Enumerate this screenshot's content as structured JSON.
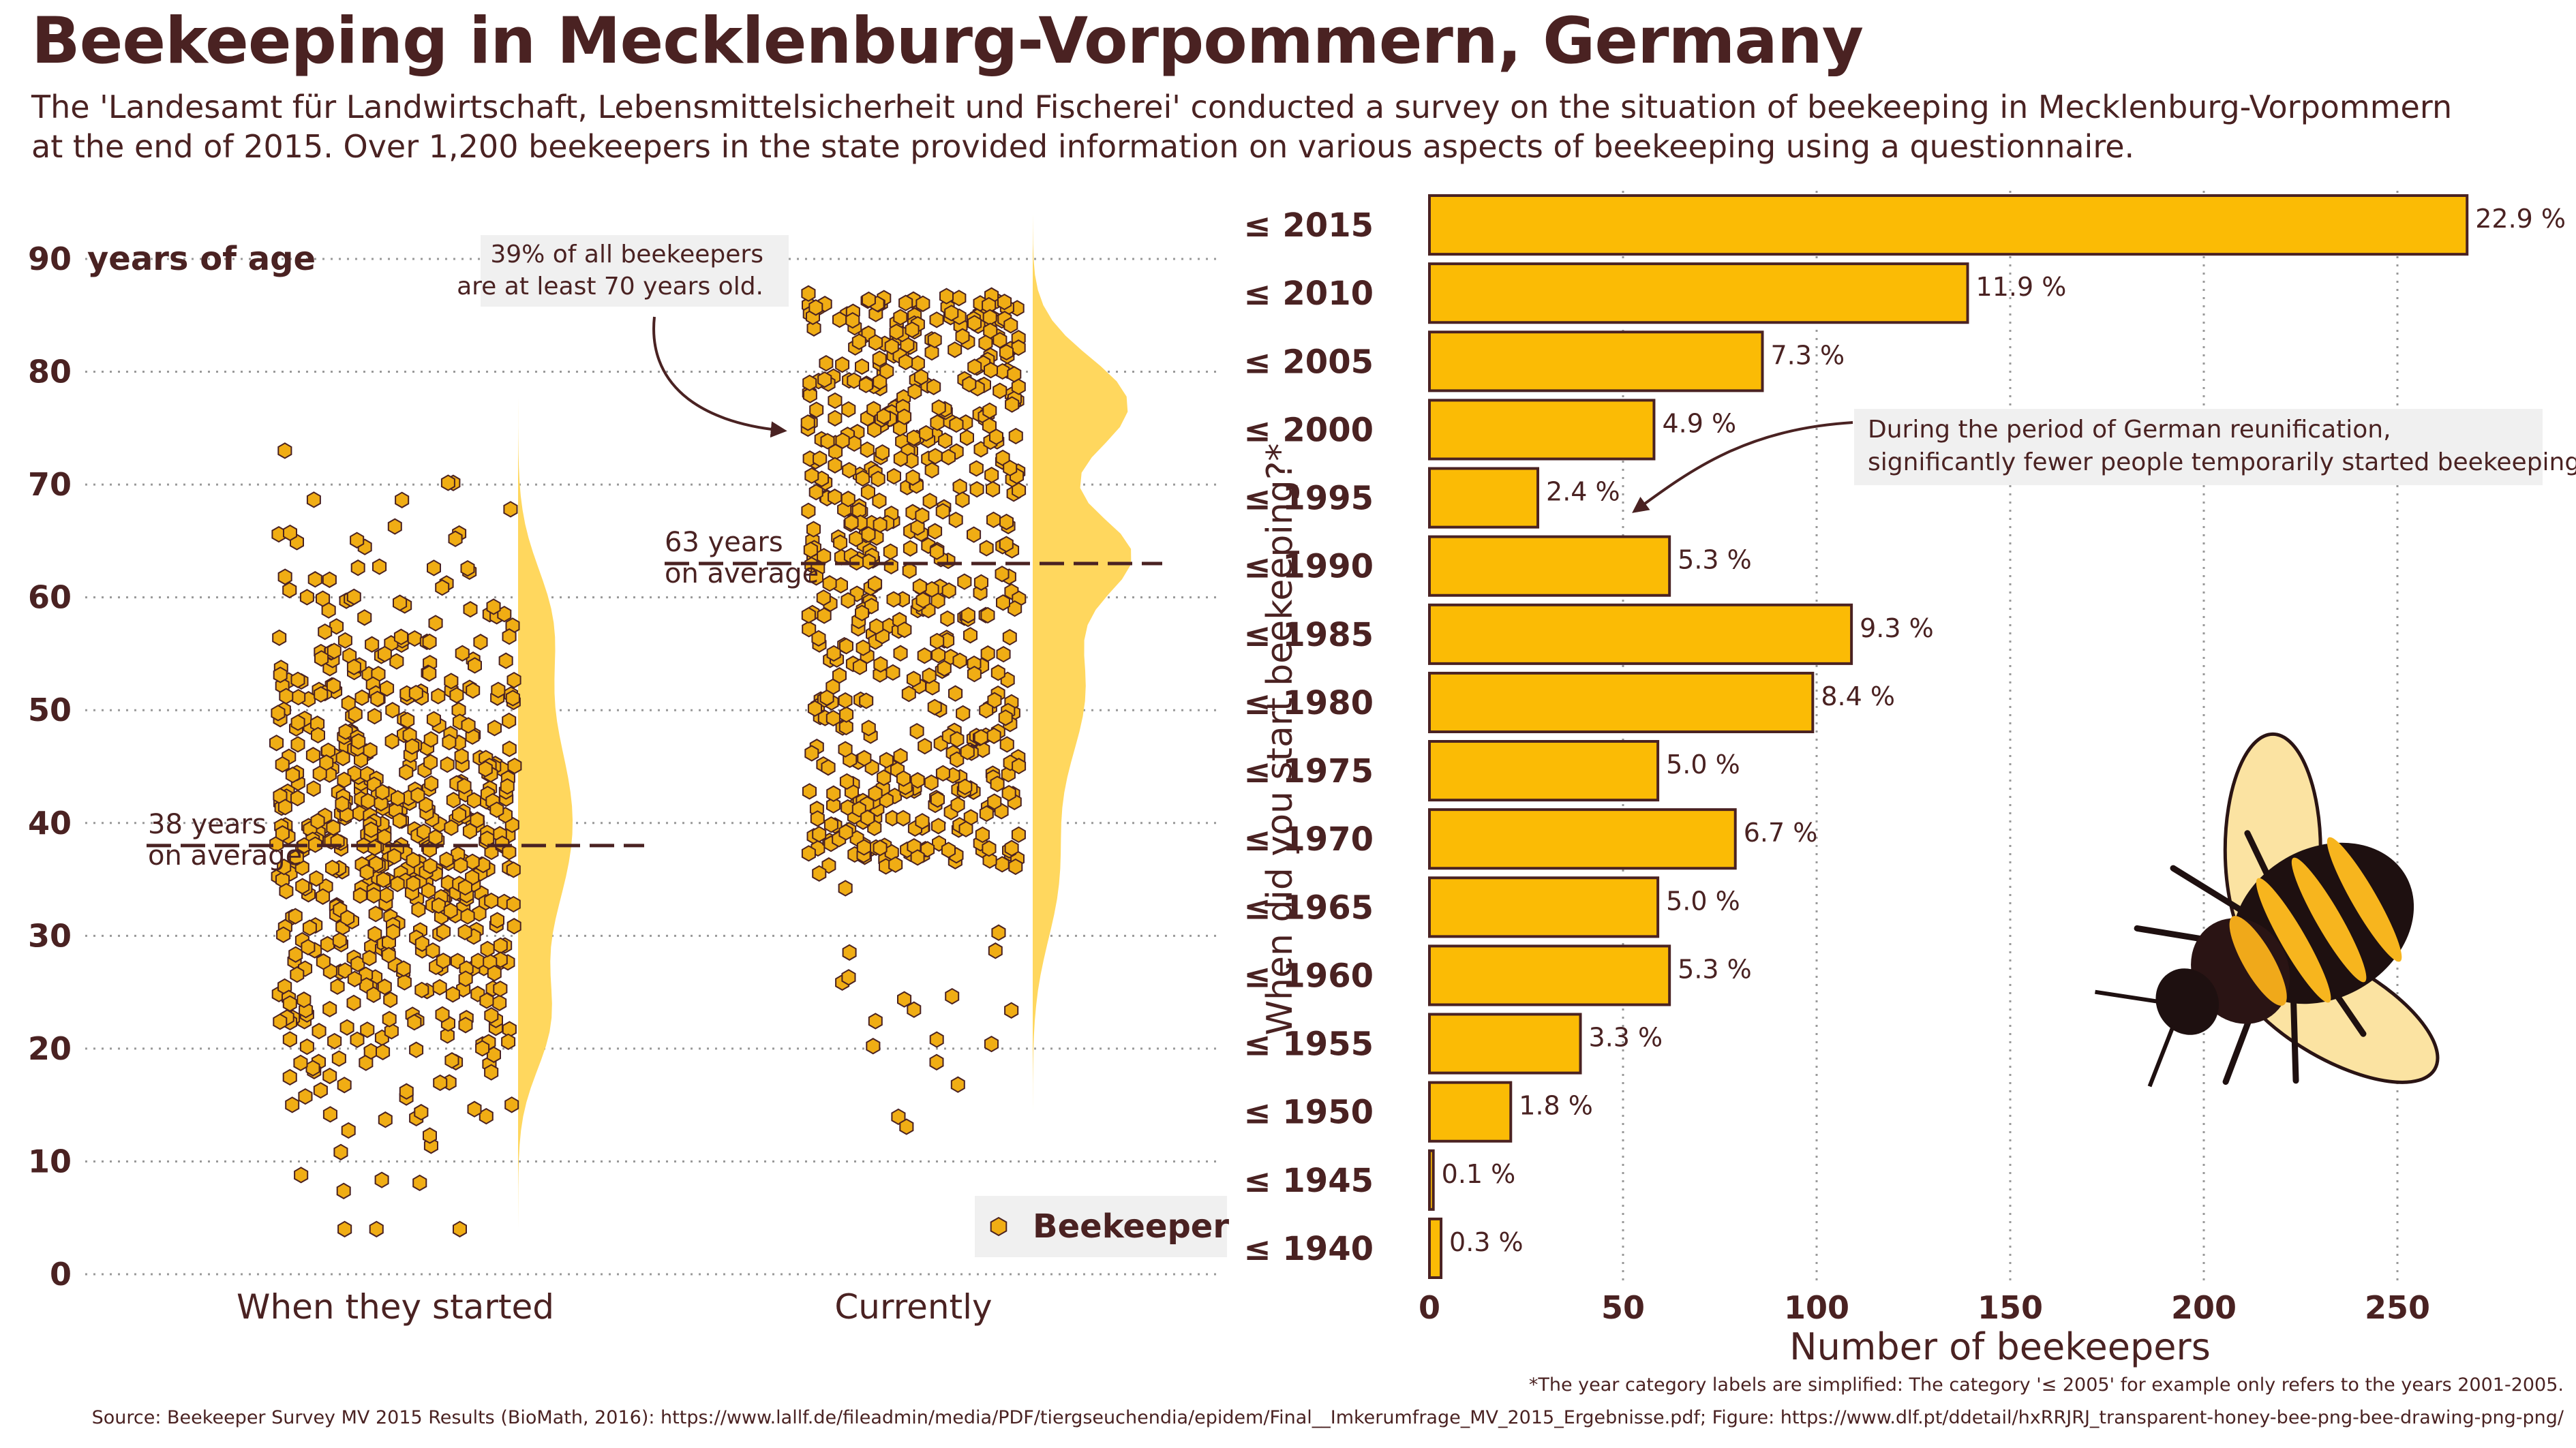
{
  "header": {
    "title": "Beekeeping in Mecklenburg-Vorpommern, Germany",
    "subtitle": "The 'Landesamt für Landwirtschaft, Lebensmittelsicherheit und Fischerei' conducted a survey on the situation of beekeeping in Mecklenburg-Vorpommern at the end of 2015. Over 1,200 beekeepers in the state provided information on various aspects of beekeeping using a questionnaire."
  },
  "footer": {
    "footnote": "*The year category labels are simplified: The category '≤ 2005' for example only refers to the years 2001-2005.",
    "source": "Source: Beekeeper Survey MV 2015 Results (BioMath, 2016): https://www.lallf.de/fileadmin/media/PDF/tiergseuchendia/epidem/Final__Imkerumfrage_MV_2015_Ergebnisse.pdf; Figure: https://www.dlf.pt/ddetail/hxRRJRJ_transparent-honey-bee-png-bee-drawing-png-png/"
  },
  "colors": {
    "hex_fill": "#f0ad14",
    "hex_stroke": "#4a2222",
    "density": "#ffd75e",
    "bar_fill": "#fbbb05",
    "text": "#4a2222",
    "grid": "#999999",
    "annotation_bg": "#f0f0f0"
  },
  "chart_data": [
    {
      "type": "scatter",
      "subtype": "beeswarm-with-density",
      "y_top_label": "years of age",
      "ylim": [
        0,
        95
      ],
      "yticks": [
        "90",
        "80",
        "70",
        "60",
        "50",
        "40",
        "30",
        "20",
        "10",
        "0"
      ],
      "categories": [
        "When they started",
        "Currently"
      ],
      "legend": {
        "label": "Beekeeper",
        "position": "bottom-right"
      },
      "series": [
        {
          "category": "When they started",
          "mean": 38,
          "min": 4,
          "max": 79,
          "mean_label": [
            "38 years",
            "on average"
          ]
        },
        {
          "category": "Currently",
          "mean": 63,
          "min": 13,
          "max": 94,
          "mean_label": [
            "63 years",
            "on average"
          ]
        }
      ],
      "annotation": [
        "39% of all beekeepers",
        "are at least 70 years old."
      ],
      "grid": true
    },
    {
      "type": "bar",
      "orientation": "horizontal",
      "ylabel": "When did you start beekeeping?*",
      "xlabel": "Number of beekeepers",
      "xlim": [
        0,
        270
      ],
      "xticks": [
        "0",
        "50",
        "100",
        "150",
        "200",
        "250"
      ],
      "categories": [
        "≤ 2015",
        "≤ 2010",
        "≤ 2005",
        "≤ 2000",
        "≤ 1995",
        "≤ 1990",
        "≤ 1985",
        "≤ 1980",
        "≤ 1975",
        "≤ 1970",
        "≤ 1965",
        "≤ 1960",
        "≤ 1955",
        "≤ 1950",
        "≤ 1945",
        "≤ 1940"
      ],
      "values": [
        268,
        139,
        86,
        58,
        28,
        62,
        109,
        99,
        59,
        79,
        59,
        62,
        39,
        21,
        1,
        3
      ],
      "labels": [
        "22.9 %",
        "11.9 %",
        "7.3 %",
        "4.9 %",
        "2.4 %",
        "5.3 %",
        "9.3 %",
        "8.4 %",
        "5.0 %",
        "6.7 %",
        "5.0 %",
        "5.3 %",
        "3.3 %",
        "1.8 %",
        "0.1 %",
        "0.3 %"
      ],
      "annotation": [
        "During the period of German reunification,",
        "significantly fewer people temporarily started beekeeping."
      ],
      "grid": true
    }
  ]
}
